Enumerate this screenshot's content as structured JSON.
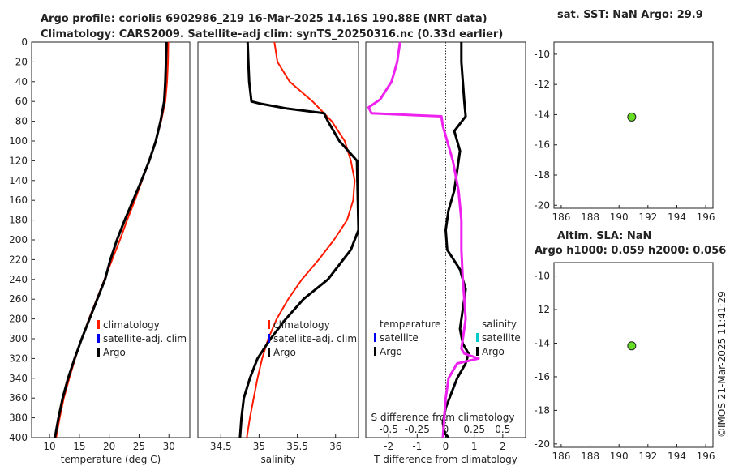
{
  "titles": {
    "line1": "Argo profile: coriolis 6902986_219 16-Mar-2025 14.16S 190.88E (NRT data)",
    "line2": "Climatology: CARS2009. Satellite-adj clim: synTS_20250316.nc (0.33d earlier)",
    "sst": "sat. SST: NaN Argo: 29.9",
    "sla1": "Altim. SLA: NaN",
    "sla2": "Argo h1000: 0.059 h2000: 0.056"
  },
  "watermark": "©IMOS 21-Mar-2025 11:41:29",
  "colors": {
    "clim": "#ff1a00",
    "sat": "#0000ee",
    "argo": "#000000",
    "sal_diff": "#ee22ee",
    "sal_sat": "#00cccc",
    "marker": "#66dd22"
  },
  "chart_data": [
    {
      "id": "temperature",
      "type": "line",
      "xlabel": "temperature (deg C)",
      "ylabel": "depth",
      "xlim": [
        7,
        33.5
      ],
      "ylim": [
        400,
        0
      ],
      "xticks": [
        10,
        15,
        20,
        25,
        30
      ],
      "yticks": [
        0,
        20,
        40,
        60,
        80,
        100,
        120,
        140,
        160,
        180,
        200,
        220,
        240,
        260,
        280,
        300,
        320,
        340,
        360,
        380,
        400
      ],
      "legend": [
        "climatology",
        "satellite-adj. clim",
        "Argo"
      ],
      "series": [
        {
          "name": "climatology",
          "color": "clim",
          "x": [
            29.9,
            29.85,
            29.7,
            29.4,
            28.7,
            27.8,
            26.7,
            25.5,
            24.3,
            23.0,
            21.8,
            20.5,
            19.2,
            17.9,
            16.6,
            15.4,
            14.3,
            13.3,
            12.4,
            11.7,
            11.1
          ],
          "y": [
            0,
            20,
            40,
            60,
            80,
            100,
            120,
            140,
            160,
            180,
            200,
            220,
            240,
            260,
            280,
            300,
            320,
            340,
            360,
            380,
            400
          ]
        },
        {
          "name": "Argo",
          "color": "argo",
          "x": [
            29.6,
            29.5,
            29.4,
            29.2,
            28.6,
            27.8,
            26.7,
            25.4,
            24.0,
            22.6,
            21.3,
            20.2,
            19.3,
            18.0,
            16.7,
            15.4,
            14.2,
            13.1,
            12.2,
            11.5,
            10.9
          ],
          "y": [
            0,
            20,
            40,
            60,
            80,
            100,
            120,
            140,
            160,
            180,
            200,
            220,
            240,
            260,
            280,
            300,
            320,
            340,
            360,
            380,
            400
          ]
        }
      ]
    },
    {
      "id": "salinity",
      "type": "line",
      "xlabel": "salinity",
      "xlim": [
        34.2,
        36.3
      ],
      "ylim": [
        400,
        0
      ],
      "xticks": [
        34.5,
        35,
        35.5,
        36
      ],
      "legend": [
        "climatology",
        "satellite-adj. clim",
        "Argo"
      ],
      "series": [
        {
          "name": "climatology",
          "color": "clim",
          "x": [
            35.2,
            35.24,
            35.4,
            35.7,
            35.95,
            36.12,
            36.2,
            36.25,
            36.23,
            36.15,
            35.98,
            35.78,
            35.56,
            35.38,
            35.23,
            35.12,
            35.04,
            34.98,
            34.93,
            34.88,
            34.84
          ],
          "y": [
            0,
            20,
            40,
            60,
            80,
            100,
            120,
            140,
            160,
            180,
            200,
            220,
            240,
            260,
            280,
            300,
            320,
            340,
            360,
            380,
            400
          ]
        },
        {
          "name": "Argo",
          "color": "argo",
          "x": [
            34.85,
            34.86,
            34.87,
            34.9,
            35.0,
            35.35,
            35.85,
            35.9,
            36.05,
            36.28,
            36.3,
            36.2,
            35.9,
            35.58,
            35.35,
            35.15,
            34.98,
            34.88,
            34.8,
            34.77,
            34.75
          ],
          "y": [
            0,
            20,
            40,
            60,
            62,
            67,
            72,
            80,
            100,
            120,
            190,
            210,
            240,
            260,
            280,
            300,
            320,
            340,
            360,
            380,
            400
          ]
        }
      ]
    },
    {
      "id": "difference",
      "type": "line",
      "xlabel": "T difference from climatology",
      "xlabel_top": "S difference from climatology",
      "xlim": [
        -2.8,
        2.8
      ],
      "ylim": [
        400,
        0
      ],
      "xticks": [
        -2,
        -1,
        0,
        1,
        2
      ],
      "xticks_top": [
        "-0.5",
        "-0.25",
        "0",
        "0.25",
        "0.5"
      ],
      "legend_left": [
        "temperature",
        "satellite",
        "Argo"
      ],
      "legend_right": [
        "salinity",
        "satellite",
        "Argo"
      ],
      "series": [
        {
          "name": "T difference (Argo)",
          "color": "argo",
          "x": [
            0.55,
            0.55,
            0.6,
            0.65,
            0.7,
            0.3,
            0.5,
            0.4,
            0.3,
            0.1,
            0.0,
            0.05,
            0.5,
            0.7,
            0.6,
            0.5,
            0.6,
            0.8,
            0.7,
            0.4,
            0.2,
            0.0,
            -0.1,
            -0.05,
            0.1
          ],
          "y": [
            0,
            20,
            40,
            60,
            75,
            90,
            110,
            130,
            150,
            170,
            190,
            210,
            230,
            250,
            270,
            290,
            305,
            315,
            325,
            340,
            355,
            370,
            385,
            395,
            400
          ]
        },
        {
          "name": "S difference (Argo)",
          "color": "sal_diff",
          "x": [
            -1.6,
            -1.7,
            -1.9,
            -2.3,
            -2.7,
            -2.6,
            -0.15,
            -0.1,
            0.05,
            0.25,
            0.45,
            0.55,
            0.55,
            0.6,
            0.65,
            0.7,
            0.6,
            0.55,
            0.65,
            1.15,
            0.4,
            0.1,
            0.0,
            -0.05,
            -0.1
          ],
          "y": [
            0,
            20,
            40,
            58,
            66,
            72,
            75,
            85,
            100,
            120,
            150,
            180,
            210,
            240,
            260,
            280,
            300,
            310,
            315,
            320,
            325,
            340,
            360,
            380,
            400
          ]
        }
      ]
    },
    {
      "id": "sst_map",
      "type": "scatter",
      "xlim": [
        185.5,
        196.5
      ],
      "ylim": [
        -20.2,
        -9.2
      ],
      "xticks": [
        186,
        188,
        190,
        192,
        194,
        196
      ],
      "yticks": [
        -10,
        -12,
        -14,
        -16,
        -18,
        -20
      ],
      "points": [
        {
          "x": 190.88,
          "y": -14.16
        }
      ]
    },
    {
      "id": "sla_map",
      "type": "scatter",
      "xlim": [
        185.5,
        196.5
      ],
      "ylim": [
        -20.2,
        -9.2
      ],
      "xticks": [
        186,
        188,
        190,
        192,
        194,
        196
      ],
      "yticks": [
        -10,
        -12,
        -14,
        -16,
        -18,
        -20
      ],
      "points": [
        {
          "x": 190.88,
          "y": -14.16
        }
      ]
    }
  ]
}
